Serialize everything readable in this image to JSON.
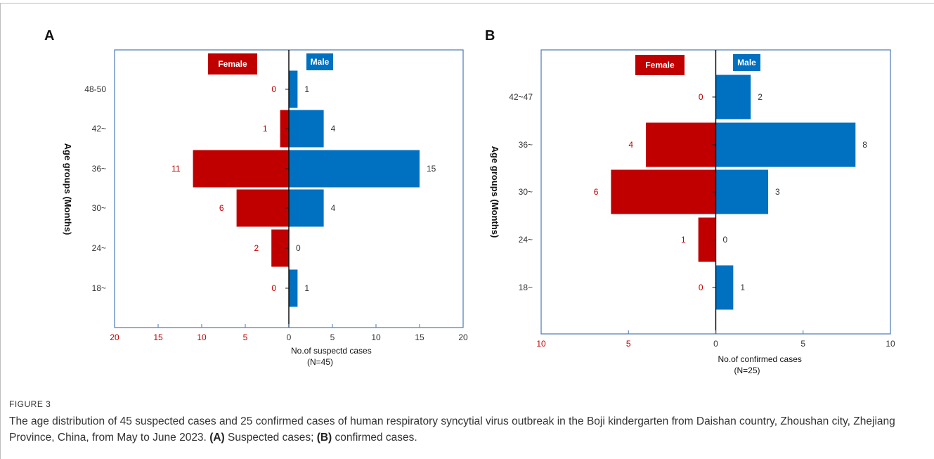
{
  "chart_data": [
    {
      "type": "bar",
      "orientation": "horizontal",
      "panel": "A",
      "categories": [
        "18~",
        "24~",
        "30~",
        "36~",
        "42~",
        "48-50"
      ],
      "series": [
        {
          "name": "Female",
          "values": [
            0,
            2,
            6,
            11,
            1,
            0
          ],
          "color": "#c00000"
        },
        {
          "name": "Male",
          "values": [
            1,
            0,
            4,
            15,
            4,
            1
          ],
          "color": "#0070c0"
        }
      ],
      "xlim": [
        -20,
        20
      ],
      "xticks": [
        -20,
        -15,
        -10,
        -5,
        0,
        5,
        10,
        15,
        20
      ],
      "xtick_labels": [
        "20",
        "15",
        "10",
        "5",
        "0",
        "5",
        "10",
        "15",
        "20"
      ],
      "xlabel": "No.of  suspectd cases",
      "xlabel_sub": "(N=45)",
      "ylabel": "Age  groups  (Months)",
      "legend": [
        "Female",
        "Male"
      ]
    },
    {
      "type": "bar",
      "orientation": "horizontal",
      "panel": "B",
      "categories": [
        "18~",
        "24~",
        "30~",
        "36~",
        "42~47"
      ],
      "series": [
        {
          "name": "Female",
          "values": [
            0,
            1,
            6,
            4,
            0
          ],
          "color": "#c00000"
        },
        {
          "name": "Male",
          "values": [
            1,
            0,
            3,
            8,
            2
          ],
          "color": "#0070c0"
        }
      ],
      "xlim": [
        -10,
        10
      ],
      "xticks": [
        -10,
        -5,
        0,
        5,
        10
      ],
      "xtick_labels": [
        "10",
        "5",
        "0",
        "5",
        "10"
      ],
      "xlabel": "No.of  confirmed cases",
      "xlabel_sub": "(N=25)",
      "ylabel": "Age  groups  (Months)",
      "legend": [
        "Female",
        "Male"
      ]
    }
  ],
  "caption": {
    "label": "FIGURE 3",
    "text_main": "The age distribution of 45 suspected cases and 25 confirmed cases of human respiratory syncytial virus outbreak in the Boji kindergarten from Daishan country, Zhoushan city, Zhejiang Province, China, from May to June 2023.",
    "label_a": "(A)",
    "text_a": "Suspected cases;",
    "label_b": "(B)",
    "text_b": "confirmed cases."
  }
}
